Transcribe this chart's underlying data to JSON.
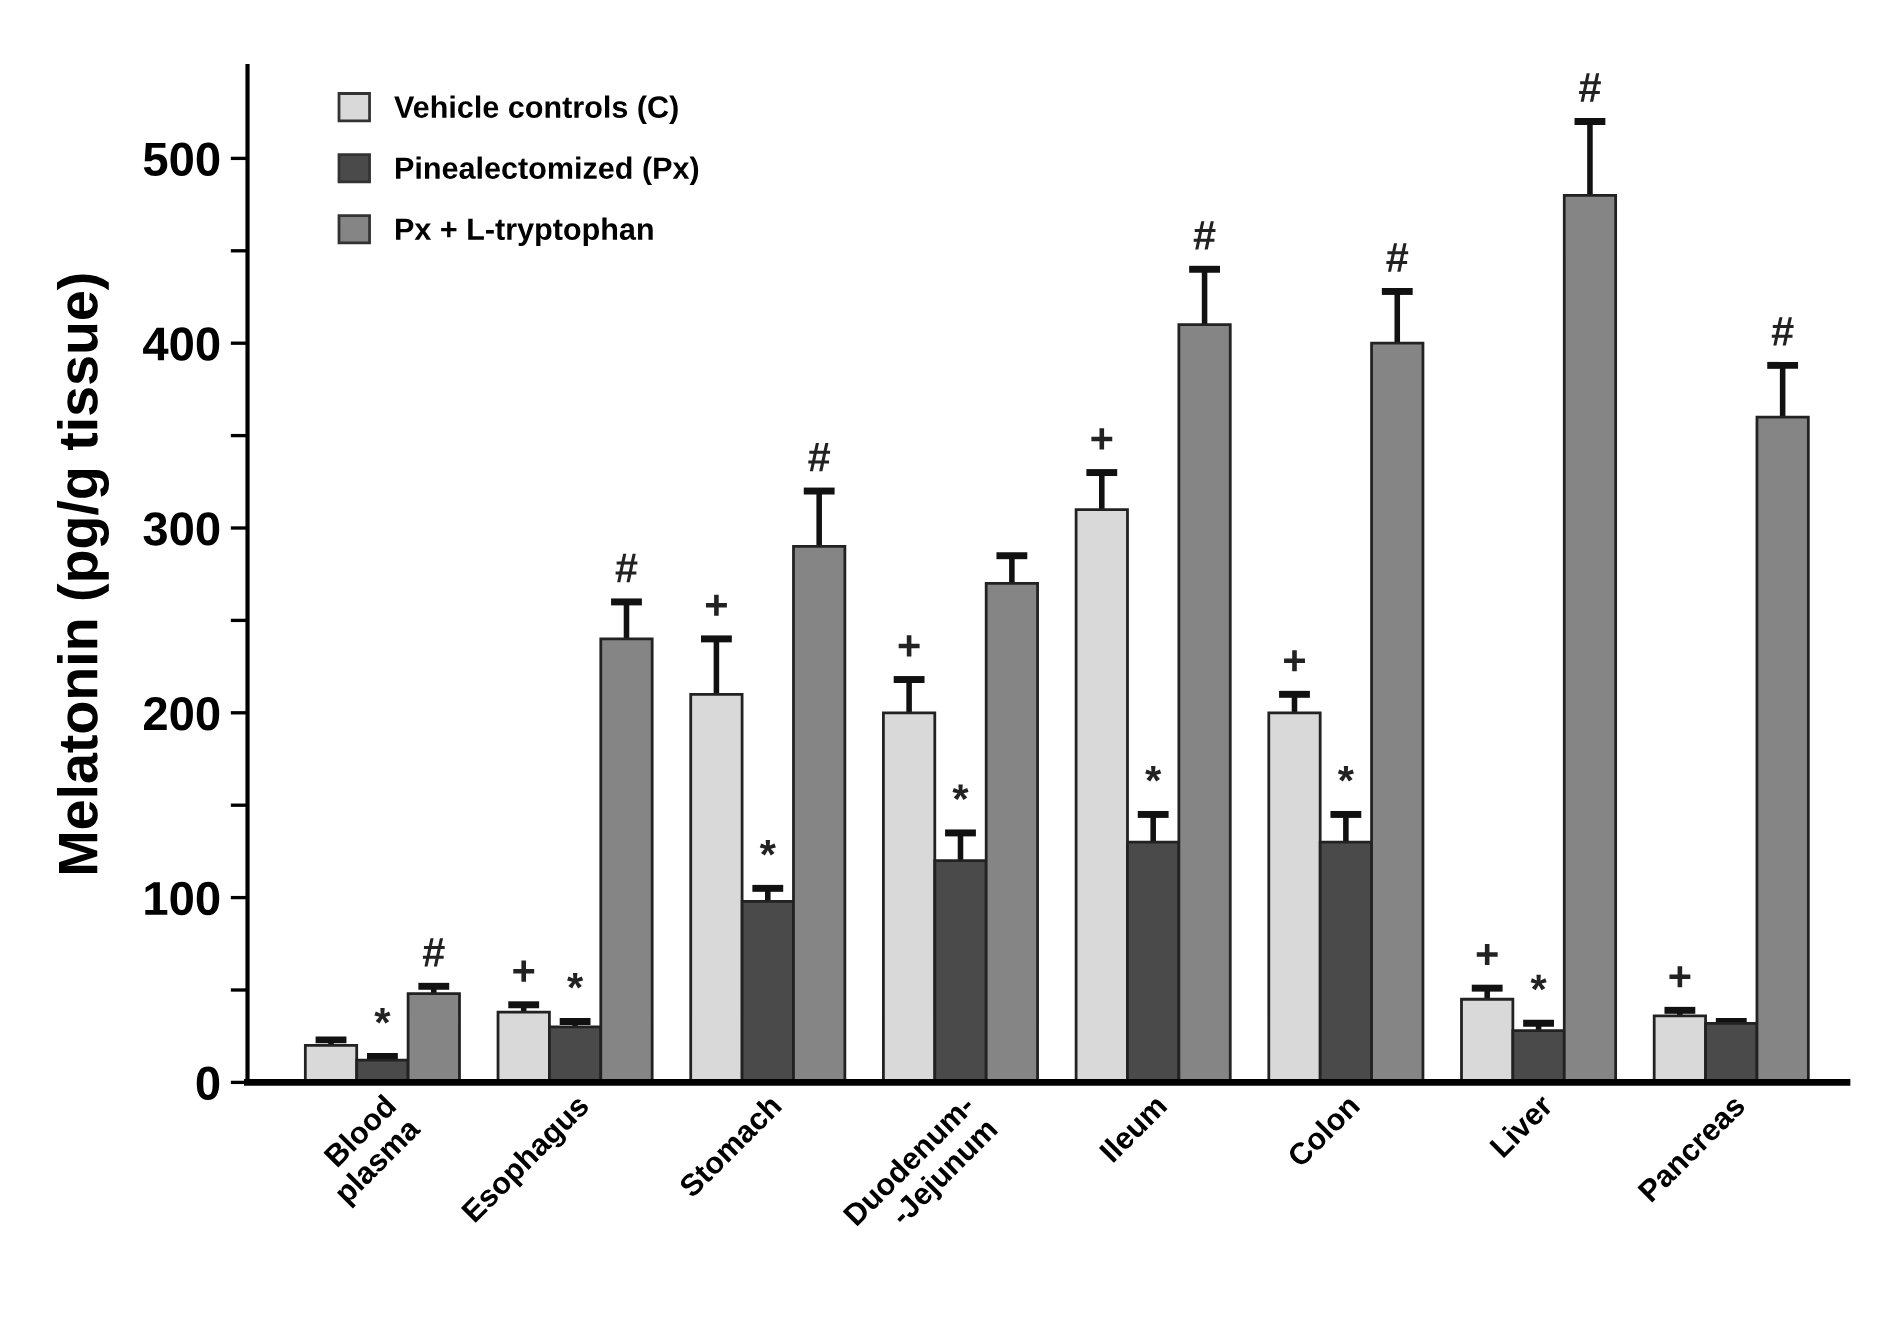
{
  "chart_data": {
    "type": "bar",
    "ylabel": "Melatonin (pg/g tissue)",
    "categories": [
      "Blood\nplasma",
      "Esophagus",
      "Stomach",
      "Duodenum-\n-Jejunum",
      "Ileum",
      "Colon",
      "Liver",
      "Pancreas"
    ],
    "series": [
      {
        "name": "Vehicle controls (C)",
        "color": "#d9d9d9",
        "values": [
          20,
          38,
          210,
          200,
          310,
          200,
          45,
          36
        ],
        "errors": [
          [
            20,
            23
          ],
          [
            38,
            42
          ],
          [
            210,
            240
          ],
          [
            200,
            218
          ],
          [
            310,
            330
          ],
          [
            200,
            210
          ],
          [
            45,
            51
          ],
          [
            36,
            39
          ]
        ],
        "value_labels": [
          null,
          "+",
          "+",
          "+",
          "+",
          "+",
          "+",
          "+"
        ]
      },
      {
        "name": "Pinealectomized (Px)",
        "color": "#4a4a4a",
        "values": [
          12,
          30,
          98,
          120,
          130,
          130,
          28,
          32
        ],
        "errors": [
          [
            12,
            14
          ],
          [
            30,
            33
          ],
          [
            98,
            105
          ],
          [
            120,
            135
          ],
          [
            130,
            145
          ],
          [
            130,
            145
          ],
          [
            28,
            32
          ],
          [
            32,
            33
          ]
        ],
        "value_labels": [
          "*",
          "*",
          "*",
          "*",
          "*",
          "*",
          "*",
          null
        ]
      },
      {
        "name": "Px + L-tryptophan",
        "color": "#858585",
        "values": [
          48,
          240,
          290,
          270,
          410,
          400,
          480,
          360
        ],
        "errors": [
          [
            48,
            52
          ],
          [
            240,
            260
          ],
          [
            290,
            320
          ],
          [
            270,
            285
          ],
          [
            410,
            440
          ],
          [
            400,
            428
          ],
          [
            480,
            520
          ],
          [
            360,
            388
          ]
        ],
        "value_labels": [
          "#",
          "#",
          "#",
          null,
          "#",
          "#",
          "#",
          "#"
        ]
      }
    ],
    "ylim": [
      0,
      550
    ],
    "yticks": [
      0,
      {
        "value": 50,
        "label": null
      },
      100,
      {
        "value": 150,
        "label": null
      },
      200,
      {
        "value": 250,
        "label": null
      },
      300,
      {
        "value": 350,
        "label": null
      },
      400,
      {
        "value": 450,
        "label": null
      },
      500
    ],
    "grid": false,
    "legend": "top left"
  }
}
